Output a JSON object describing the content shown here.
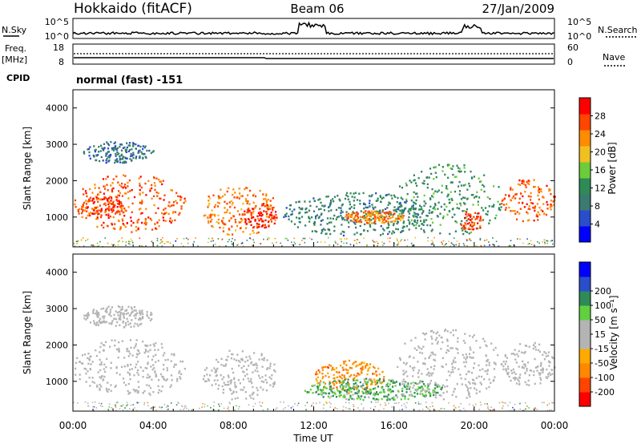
{
  "header": {
    "station": "Hokkaido (fitACF)",
    "beam": "Beam 06",
    "date": "27/Jan/2009"
  },
  "top_panel": {
    "left_label": "N.Sky",
    "right_label": "N.Search",
    "left_ticks": [
      "10^5",
      "10^0"
    ],
    "right_ticks": [
      "10^5",
      "10^0"
    ]
  },
  "freq_panel": {
    "left_label": "Freq.",
    "left_unit": "[MHz]",
    "left_ticks": [
      "18",
      "8"
    ],
    "right_label": "Nave",
    "right_ticks": [
      "60",
      "0"
    ],
    "cpid_label": "CPID",
    "cpid_value": "normal (fast) -151"
  },
  "colors": {
    "power": [
      "#0000ff",
      "#2a4dcc",
      "#3b7a6f",
      "#2e8b57",
      "#6ccc3a",
      "#f0c020",
      "#ff8c00",
      "#ff4500",
      "#ff0000"
    ],
    "velocity": [
      "#ff0000",
      "#ff4400",
      "#ff8800",
      "#ffaa00",
      "#b4b4b4",
      "#b4b4b4",
      "#60d040",
      "#2e8b57",
      "#2a4dcc",
      "#0000ff"
    ],
    "ground": "#b4b4b4"
  },
  "chart_data": [
    {
      "type": "heatmap",
      "panel": "power",
      "xlabel": "Time UT",
      "ylabel": "Slant Range [km]",
      "xlim": [
        0,
        24
      ],
      "ylim": [
        180,
        4500
      ],
      "y_ticks": [
        "1000",
        "2000",
        "3000",
        "4000"
      ],
      "x_ticks": [
        "00:00",
        "04:00",
        "08:00",
        "12:00",
        "16:00",
        "20:00",
        "00:00"
      ],
      "colorbar": {
        "label": "Power [dB]",
        "ticks": [
          "4",
          "8",
          "12",
          "16",
          "20",
          "24",
          "28"
        ],
        "range": [
          0,
          32
        ]
      },
      "regions": [
        {
          "t": [
            0.0,
            5.6
          ],
          "r": [
            600,
            2200
          ],
          "level": 26
        },
        {
          "t": [
            0.3,
            2.5
          ],
          "r": [
            1000,
            1600
          ],
          "level": 28
        },
        {
          "t": [
            0.5,
            4.0
          ],
          "r": [
            2500,
            3100
          ],
          "level": 8
        },
        {
          "t": [
            6.4,
            10.2
          ],
          "r": [
            500,
            1900
          ],
          "level": 24
        },
        {
          "t": [
            8.4,
            10.2
          ],
          "r": [
            700,
            1400
          ],
          "level": 29
        },
        {
          "t": [
            10.4,
            18.0
          ],
          "r": [
            500,
            1700
          ],
          "level": 10
        },
        {
          "t": [
            13.5,
            16.5
          ],
          "r": [
            850,
            1200
          ],
          "level": 24
        },
        {
          "t": [
            16.0,
            21.4
          ],
          "r": [
            500,
            2500
          ],
          "level": 12
        },
        {
          "t": [
            19.2,
            20.4
          ],
          "r": [
            600,
            1200
          ],
          "level": 28
        },
        {
          "t": [
            21.3,
            24.0
          ],
          "r": [
            900,
            2100
          ],
          "level": 26
        }
      ]
    },
    {
      "type": "heatmap",
      "panel": "velocity",
      "xlabel": "Time UT",
      "ylabel": "Slant Range [km]",
      "xlim": [
        0,
        24
      ],
      "ylim": [
        180,
        4500
      ],
      "y_ticks": [
        "1000",
        "2000",
        "3000",
        "4000"
      ],
      "x_ticks": [
        "00:00",
        "04:00",
        "08:00",
        "12:00",
        "16:00",
        "20:00",
        "00:00"
      ],
      "colorbar": {
        "label": "Velocity [m s⁻¹]",
        "ticks": [
          "-200",
          "-100",
          "-50",
          "-15",
          "15",
          "50",
          "100",
          "200"
        ]
      },
      "regions": [
        {
          "t": [
            0.0,
            5.6
          ],
          "r": [
            600,
            2200
          ],
          "velocity": 0,
          "ground_scatter": true
        },
        {
          "t": [
            0.5,
            4.0
          ],
          "r": [
            2500,
            3100
          ],
          "velocity": 0,
          "ground_scatter": true
        },
        {
          "t": [
            6.4,
            10.2
          ],
          "r": [
            500,
            1900
          ],
          "velocity": 0,
          "ground_scatter": true
        },
        {
          "t": [
            12.0,
            15.5
          ],
          "r": [
            700,
            1600
          ],
          "velocity": -70
        },
        {
          "t": [
            11.5,
            18.5
          ],
          "r": [
            500,
            1100
          ],
          "velocity": 40
        },
        {
          "t": [
            16.0,
            21.4
          ],
          "r": [
            500,
            2500
          ],
          "velocity": 0,
          "ground_scatter": true
        },
        {
          "t": [
            21.3,
            24.0
          ],
          "r": [
            900,
            2100
          ],
          "velocity": 0,
          "ground_scatter": true
        }
      ]
    }
  ]
}
